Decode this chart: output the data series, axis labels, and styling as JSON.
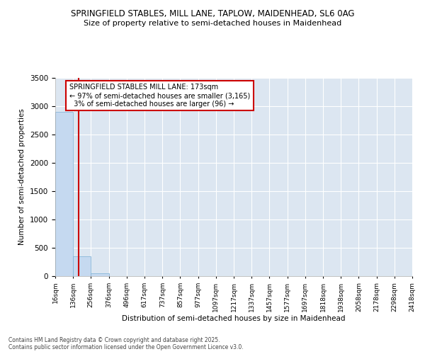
{
  "title_line1": "SPRINGFIELD STABLES, MILL LANE, TAPLOW, MAIDENHEAD, SL6 0AG",
  "title_line2": "Size of property relative to semi-detached houses in Maidenhead",
  "xlabel": "Distribution of semi-detached houses by size in Maidenhead",
  "ylabel": "Number of semi-detached properties",
  "property_size": 173,
  "property_label": "SPRINGFIELD STABLES MILL LANE: 173sqm",
  "pct_smaller": 97,
  "count_smaller": 3165,
  "pct_larger": 3,
  "count_larger": 96,
  "bins": [
    16,
    136,
    256,
    376,
    496,
    617,
    737,
    857,
    977,
    1097,
    1217,
    1337,
    1457,
    1577,
    1697,
    1818,
    1938,
    2058,
    2178,
    2298,
    2418
  ],
  "bar_values": [
    2900,
    350,
    50,
    5,
    2,
    1,
    1,
    0,
    0,
    0,
    0,
    0,
    0,
    0,
    0,
    0,
    0,
    0,
    0,
    0
  ],
  "bar_color": "#c5d9f0",
  "bar_edge_color": "#7bafd4",
  "red_line_color": "#cc0000",
  "annotation_box_edge_color": "#cc0000",
  "plot_bg_color": "#dce6f1",
  "fig_bg_color": "#ffffff",
  "grid_color": "#ffffff",
  "ylim": [
    0,
    3500
  ],
  "yticks": [
    0,
    500,
    1000,
    1500,
    2000,
    2500,
    3000,
    3500
  ],
  "footer_line1": "Contains HM Land Registry data © Crown copyright and database right 2025.",
  "footer_line2": "Contains public sector information licensed under the Open Government Licence v3.0."
}
